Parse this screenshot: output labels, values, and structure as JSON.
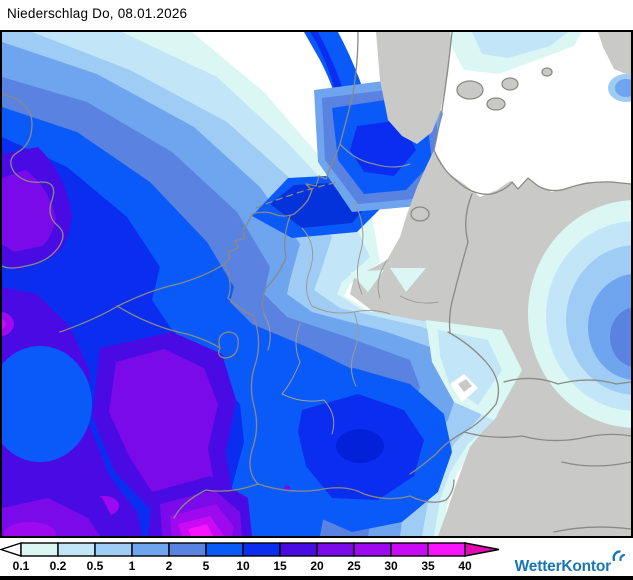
{
  "header": {
    "title": "Niederschlag Do, 08.01.2026"
  },
  "legend": {
    "values": [
      "0.1",
      "0.2",
      "0.5",
      "1",
      "2",
      "5",
      "10",
      "15",
      "20",
      "25",
      "30",
      "35",
      "40"
    ],
    "cell_colors": [
      "#DAF7F4",
      "#C2E6F7",
      "#9FCCF4",
      "#6FA4EE",
      "#5A82E0",
      "#0A5AFA",
      "#0A2DF0",
      "#4A0AE4",
      "#7A0AEA",
      "#9E0AF0",
      "#C90AF5",
      "#F514FC"
    ],
    "underflow_color": "#FFFFFF",
    "overflow_color": "#E30CB4",
    "outline_color": "#000000"
  },
  "branding": {
    "name": "WetterKontor",
    "color": "#1878B5"
  },
  "map": {
    "sea_color": "#FFFFFF",
    "dry_land_color": "#C9C9C8",
    "border_color": "#8A8A84",
    "state_border_color": "#9C9C94",
    "dark_core_color": "#0321D8",
    "dark_lake_blob_color": "#0533DB",
    "frame_color": "#000000"
  }
}
